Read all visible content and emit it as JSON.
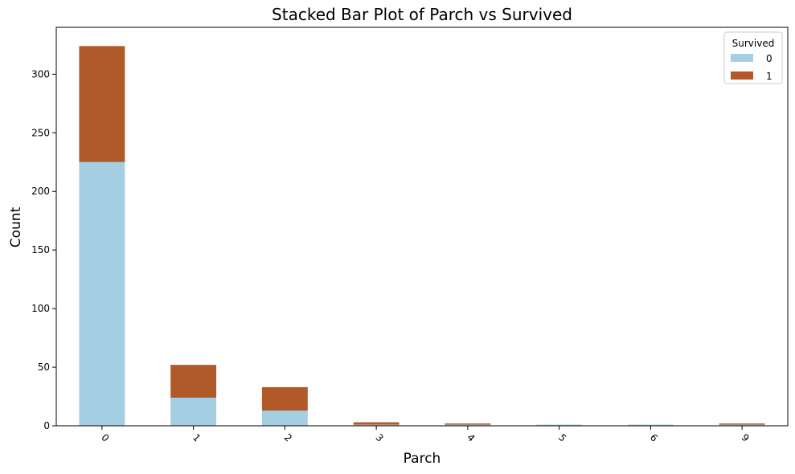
{
  "chart_data": {
    "type": "bar",
    "stacked": true,
    "title": "Stacked Bar Plot of Parch vs Survived",
    "xlabel": "Parch",
    "ylabel": "Count",
    "categories": [
      "0",
      "1",
      "2",
      "3",
      "4",
      "5",
      "6",
      "9"
    ],
    "series": [
      {
        "name": "0",
        "color": "#a6cee3",
        "values": [
          225,
          24,
          13,
          1,
          1,
          1,
          1,
          1
        ]
      },
      {
        "name": "1",
        "color": "#b15928",
        "values": [
          99,
          28,
          20,
          2,
          1,
          0,
          0,
          1
        ]
      }
    ],
    "ylim": [
      0,
      340
    ],
    "yticks": [
      0,
      50,
      100,
      150,
      200,
      250,
      300
    ],
    "xtick_rotation": 45,
    "legend": {
      "title": "Survived",
      "position": "top-right"
    },
    "grid": false
  }
}
